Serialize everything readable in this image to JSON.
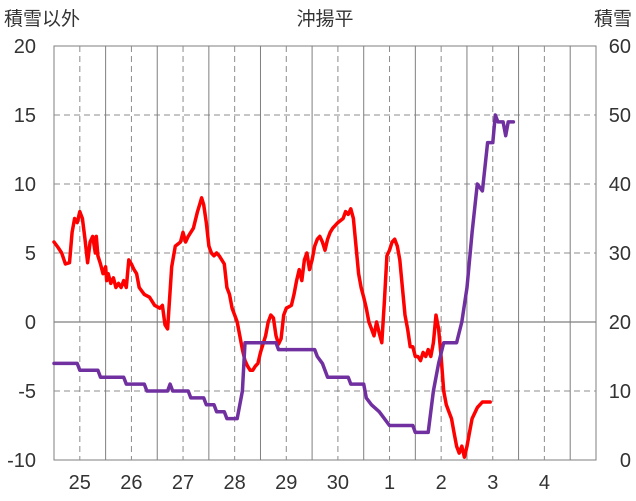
{
  "chart_data": {
    "type": "line",
    "title": "沖揚平",
    "left_axis_label": "積雪以外",
    "right_axis_label": "積雪",
    "left_ylim": [
      -10,
      20
    ],
    "left_yticks": [
      -10,
      -5,
      0,
      5,
      10,
      15,
      20
    ],
    "right_ylim": [
      0,
      60
    ],
    "right_yticks": [
      0,
      10,
      20,
      30,
      40,
      50,
      60
    ],
    "xlim": [
      0,
      10.5
    ],
    "x_day_labels": [
      {
        "x": 0.5,
        "label": "25"
      },
      {
        "x": 1.5,
        "label": "26"
      },
      {
        "x": 2.5,
        "label": "27"
      },
      {
        "x": 3.5,
        "label": "28"
      },
      {
        "x": 4.5,
        "label": "29"
      },
      {
        "x": 5.5,
        "label": "30"
      },
      {
        "x": 6.5,
        "label": "1"
      },
      {
        "x": 7.5,
        "label": "2"
      },
      {
        "x": 8.5,
        "label": "3"
      },
      {
        "x": 9.5,
        "label": "4"
      }
    ],
    "x_solid_grid": [
      1,
      2,
      3,
      4,
      5,
      6,
      7,
      8,
      9,
      10
    ],
    "x_dashed_grid": [
      0.5,
      1.5,
      2.5,
      3.5,
      4.5,
      5.5,
      6.5,
      7.5,
      8.5,
      9.5
    ],
    "y_dashed_grid": [
      -5,
      5,
      10,
      15
    ],
    "y_solid_grid": [
      0
    ],
    "grid": true,
    "legend": "none",
    "series": [
      {
        "color": "#ff0000",
        "axis": "left",
        "points": [
          [
            0.0,
            5.8
          ],
          [
            0.08,
            5.4
          ],
          [
            0.15,
            5.0
          ],
          [
            0.22,
            4.2
          ],
          [
            0.3,
            4.3
          ],
          [
            0.35,
            6.5
          ],
          [
            0.4,
            7.5
          ],
          [
            0.45,
            7.2
          ],
          [
            0.5,
            8.0
          ],
          [
            0.55,
            7.5
          ],
          [
            0.6,
            6.0
          ],
          [
            0.65,
            4.3
          ],
          [
            0.7,
            5.8
          ],
          [
            0.75,
            6.2
          ],
          [
            0.8,
            5.0
          ],
          [
            0.82,
            6.2
          ],
          [
            0.85,
            4.8
          ],
          [
            0.9,
            4.2
          ],
          [
            0.95,
            3.5
          ],
          [
            1.0,
            4.0
          ],
          [
            1.02,
            3.0
          ],
          [
            1.05,
            3.5
          ],
          [
            1.1,
            2.8
          ],
          [
            1.15,
            3.2
          ],
          [
            1.2,
            2.5
          ],
          [
            1.25,
            2.8
          ],
          [
            1.3,
            2.5
          ],
          [
            1.35,
            3.0
          ],
          [
            1.4,
            2.5
          ],
          [
            1.45,
            4.5
          ],
          [
            1.5,
            4.2
          ],
          [
            1.55,
            3.8
          ],
          [
            1.6,
            3.5
          ],
          [
            1.65,
            2.5
          ],
          [
            1.75,
            2.0
          ],
          [
            1.85,
            1.8
          ],
          [
            1.95,
            1.2
          ],
          [
            2.05,
            1.0
          ],
          [
            2.1,
            1.2
          ],
          [
            2.15,
            -0.2
          ],
          [
            2.2,
            -0.5
          ],
          [
            2.28,
            4.0
          ],
          [
            2.35,
            5.5
          ],
          [
            2.45,
            5.8
          ],
          [
            2.5,
            6.5
          ],
          [
            2.55,
            5.8
          ],
          [
            2.6,
            6.2
          ],
          [
            2.65,
            6.5
          ],
          [
            2.7,
            6.8
          ],
          [
            2.78,
            8.0
          ],
          [
            2.82,
            8.5
          ],
          [
            2.86,
            9.0
          ],
          [
            2.9,
            8.5
          ],
          [
            2.95,
            7.2
          ],
          [
            3.0,
            5.5
          ],
          [
            3.05,
            5.0
          ],
          [
            3.1,
            4.8
          ],
          [
            3.15,
            5.0
          ],
          [
            3.2,
            4.8
          ],
          [
            3.25,
            4.5
          ],
          [
            3.3,
            4.2
          ],
          [
            3.35,
            2.5
          ],
          [
            3.4,
            2.0
          ],
          [
            3.45,
            1.0
          ],
          [
            3.5,
            0.5
          ],
          [
            3.55,
            0.0
          ],
          [
            3.6,
            -1.0
          ],
          [
            3.65,
            -2.0
          ],
          [
            3.7,
            -2.8
          ],
          [
            3.75,
            -3.2
          ],
          [
            3.8,
            -3.5
          ],
          [
            3.85,
            -3.5
          ],
          [
            3.9,
            -3.2
          ],
          [
            3.95,
            -3.0
          ],
          [
            4.0,
            -2.2
          ],
          [
            4.1,
            -1.0
          ],
          [
            4.15,
            0.0
          ],
          [
            4.2,
            0.5
          ],
          [
            4.25,
            0.3
          ],
          [
            4.3,
            -1.0
          ],
          [
            4.35,
            -1.6
          ],
          [
            4.4,
            -1.2
          ],
          [
            4.45,
            0.5
          ],
          [
            4.5,
            1.0
          ],
          [
            4.6,
            1.2
          ],
          [
            4.65,
            2.0
          ],
          [
            4.7,
            3.0
          ],
          [
            4.75,
            3.8
          ],
          [
            4.8,
            3.0
          ],
          [
            4.85,
            4.5
          ],
          [
            4.9,
            5.0
          ],
          [
            4.95,
            3.8
          ],
          [
            5.0,
            4.5
          ],
          [
            5.05,
            5.5
          ],
          [
            5.1,
            6.0
          ],
          [
            5.15,
            6.2
          ],
          [
            5.2,
            5.8
          ],
          [
            5.25,
            5.2
          ],
          [
            5.3,
            6.0
          ],
          [
            5.35,
            6.5
          ],
          [
            5.4,
            6.8
          ],
          [
            5.5,
            7.2
          ],
          [
            5.6,
            7.5
          ],
          [
            5.65,
            8.0
          ],
          [
            5.7,
            7.8
          ],
          [
            5.75,
            8.2
          ],
          [
            5.8,
            7.5
          ],
          [
            5.85,
            5.5
          ],
          [
            5.9,
            3.5
          ],
          [
            5.95,
            2.5
          ],
          [
            6.0,
            1.8
          ],
          [
            6.05,
            1.0
          ],
          [
            6.1,
            0.0
          ],
          [
            6.15,
            -0.5
          ],
          [
            6.2,
            -1.0
          ],
          [
            6.25,
            0.0
          ],
          [
            6.3,
            -0.8
          ],
          [
            6.35,
            -1.5
          ],
          [
            6.4,
            1.5
          ],
          [
            6.45,
            4.8
          ],
          [
            6.5,
            5.2
          ],
          [
            6.55,
            5.8
          ],
          [
            6.6,
            6.0
          ],
          [
            6.65,
            5.5
          ],
          [
            6.7,
            4.5
          ],
          [
            6.75,
            2.5
          ],
          [
            6.8,
            0.5
          ],
          [
            6.85,
            -0.5
          ],
          [
            6.9,
            -1.8
          ],
          [
            6.95,
            -1.8
          ],
          [
            7.0,
            -2.5
          ],
          [
            7.05,
            -2.5
          ],
          [
            7.1,
            -2.8
          ],
          [
            7.15,
            -2.2
          ],
          [
            7.2,
            -2.5
          ],
          [
            7.25,
            -2.0
          ],
          [
            7.3,
            -2.5
          ],
          [
            7.35,
            -1.5
          ],
          [
            7.4,
            0.5
          ],
          [
            7.45,
            -0.5
          ],
          [
            7.5,
            -2.5
          ],
          [
            7.55,
            -5.0
          ],
          [
            7.6,
            -6.0
          ],
          [
            7.65,
            -6.5
          ],
          [
            7.7,
            -7.0
          ],
          [
            7.75,
            -8.0
          ],
          [
            7.8,
            -9.0
          ],
          [
            7.85,
            -9.5
          ],
          [
            7.9,
            -9.0
          ],
          [
            7.95,
            -9.8
          ],
          [
            8.0,
            -9.0
          ],
          [
            8.05,
            -8.0
          ],
          [
            8.1,
            -7.0
          ],
          [
            8.2,
            -6.2
          ],
          [
            8.3,
            -5.8
          ],
          [
            8.4,
            -5.8
          ],
          [
            8.45,
            -5.8
          ]
        ]
      },
      {
        "color": "#7030a0",
        "axis": "right",
        "points": [
          [
            0.0,
            14.0
          ],
          [
            0.45,
            14.0
          ],
          [
            0.5,
            13.0
          ],
          [
            0.85,
            13.0
          ],
          [
            0.9,
            12.0
          ],
          [
            1.35,
            12.0
          ],
          [
            1.4,
            11.0
          ],
          [
            1.75,
            11.0
          ],
          [
            1.8,
            10.0
          ],
          [
            2.2,
            10.0
          ],
          [
            2.25,
            11.0
          ],
          [
            2.3,
            10.0
          ],
          [
            2.6,
            10.0
          ],
          [
            2.65,
            9.0
          ],
          [
            2.9,
            9.0
          ],
          [
            2.95,
            8.0
          ],
          [
            3.1,
            8.0
          ],
          [
            3.15,
            7.0
          ],
          [
            3.3,
            7.0
          ],
          [
            3.35,
            6.0
          ],
          [
            3.55,
            6.0
          ],
          [
            3.6,
            8.0
          ],
          [
            3.65,
            10.0
          ],
          [
            3.7,
            17.0
          ],
          [
            4.3,
            17.0
          ],
          [
            4.35,
            16.0
          ],
          [
            5.05,
            16.0
          ],
          [
            5.1,
            15.0
          ],
          [
            5.2,
            14.0
          ],
          [
            5.3,
            12.0
          ],
          [
            5.7,
            12.0
          ],
          [
            5.75,
            11.0
          ],
          [
            6.0,
            11.0
          ],
          [
            6.05,
            9.0
          ],
          [
            6.15,
            8.0
          ],
          [
            6.3,
            7.0
          ],
          [
            6.5,
            5.0
          ],
          [
            6.95,
            5.0
          ],
          [
            7.0,
            4.0
          ],
          [
            7.25,
            4.0
          ],
          [
            7.35,
            10.0
          ],
          [
            7.45,
            14.0
          ],
          [
            7.55,
            17.0
          ],
          [
            7.8,
            17.0
          ],
          [
            7.9,
            20.0
          ],
          [
            8.0,
            25.0
          ],
          [
            8.1,
            33.0
          ],
          [
            8.2,
            40.0
          ],
          [
            8.3,
            39.0
          ],
          [
            8.4,
            46.0
          ],
          [
            8.5,
            46.0
          ],
          [
            8.55,
            50.0
          ],
          [
            8.6,
            49.0
          ],
          [
            8.7,
            49.0
          ],
          [
            8.75,
            47.0
          ],
          [
            8.8,
            49.0
          ],
          [
            8.9,
            49.0
          ]
        ]
      }
    ]
  }
}
